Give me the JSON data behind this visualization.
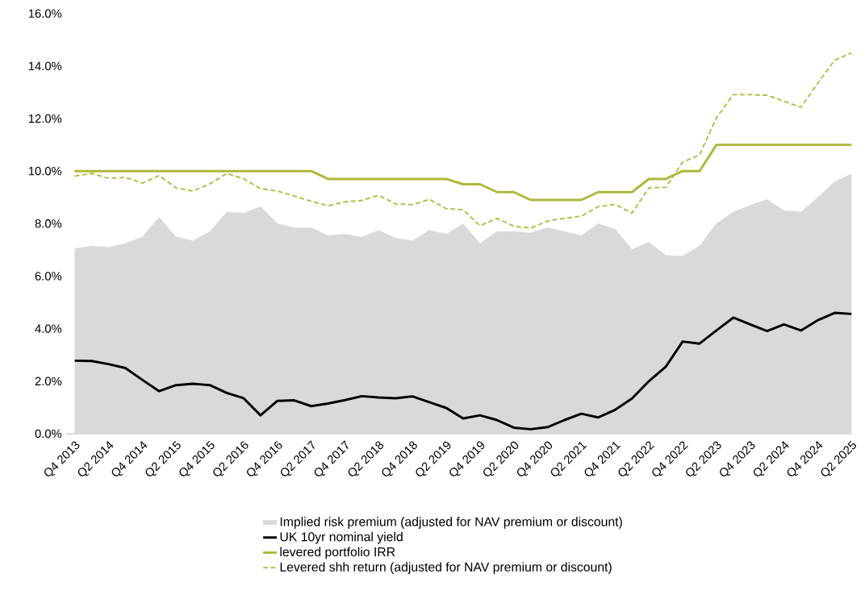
{
  "chart_data": {
    "type": "line",
    "categories": [
      "Q4 2013",
      null,
      "Q2 2014",
      null,
      "Q4 2014",
      null,
      "Q2 2015",
      null,
      "Q4 2015",
      null,
      "Q2 2016",
      null,
      "Q4 2016",
      null,
      "Q2 2017",
      null,
      "Q4 2017",
      null,
      "Q2 2018",
      null,
      "Q4 2018",
      null,
      "Q2 2019",
      null,
      "Q4 2019",
      null,
      "Q2 2020",
      null,
      "Q4 2020",
      null,
      "Q2 2021",
      null,
      "Q4 2021",
      null,
      "Q2 2022",
      null,
      "Q4 2022",
      null,
      "Q2 2023",
      null,
      "Q4 2023",
      null,
      "Q2 2024",
      null,
      "Q4 2024",
      null,
      "Q2 2025"
    ],
    "ylim": [
      0,
      16
    ],
    "yticks": [
      {
        "value": 0,
        "label": "0.0%"
      },
      {
        "value": 2,
        "label": "2.0%"
      },
      {
        "value": 4,
        "label": "4.0%"
      },
      {
        "value": 6,
        "label": "6.0%"
      },
      {
        "value": 8,
        "label": "8.0%"
      },
      {
        "value": 10,
        "label": "10.0%"
      },
      {
        "value": 12,
        "label": "12.0%"
      },
      {
        "value": 14,
        "label": "14.0%"
      },
      {
        "value": 16,
        "label": "16.0%"
      }
    ],
    "legend": "bottom",
    "series": [
      {
        "name": "Implied risk premium (adjusted for NAV premium or discount)",
        "type": "area",
        "color": "#d9d9d9",
        "values": [
          7.05,
          7.15,
          7.1,
          7.25,
          7.5,
          8.25,
          7.5,
          7.35,
          7.7,
          8.45,
          8.4,
          8.65,
          8.0,
          7.85,
          7.85,
          7.55,
          7.6,
          7.5,
          7.75,
          7.45,
          7.35,
          7.75,
          7.6,
          8.0,
          7.25,
          7.7,
          7.7,
          7.65,
          7.85,
          7.7,
          7.55,
          8.0,
          7.8,
          7.02,
          7.3,
          6.8,
          6.76,
          7.16,
          8.0,
          8.45,
          8.7,
          8.92,
          8.5,
          8.45,
          9.0,
          9.6,
          9.9
        ]
      },
      {
        "name": "UK 10yr nominal yield",
        "line_style": "solid",
        "color": "#000000",
        "values": [
          2.78,
          2.77,
          2.65,
          2.5,
          2.05,
          1.62,
          1.85,
          1.9,
          1.85,
          1.55,
          1.35,
          0.7,
          1.25,
          1.27,
          1.05,
          1.15,
          1.28,
          1.43,
          1.38,
          1.35,
          1.42,
          1.2,
          0.98,
          0.58,
          0.7,
          0.52,
          0.23,
          0.17,
          0.25,
          0.52,
          0.76,
          0.62,
          0.91,
          1.34,
          2.0,
          2.55,
          3.51,
          3.43,
          3.93,
          4.42,
          4.16,
          3.91,
          4.16,
          3.93,
          4.32,
          4.6,
          4.56
        ]
      },
      {
        "name": "levered portfolio IRR",
        "line_style": "solid",
        "color": "#afb83b",
        "values": [
          10.0,
          10.0,
          10.0,
          10.0,
          10.0,
          10.0,
          10.0,
          10.0,
          10.0,
          10.0,
          10.0,
          10.0,
          10.0,
          10.0,
          10.0,
          9.7,
          9.7,
          9.7,
          9.7,
          9.7,
          9.7,
          9.7,
          9.7,
          9.5,
          9.5,
          9.2,
          9.2,
          8.9,
          8.9,
          8.9,
          8.9,
          9.2,
          9.2,
          9.2,
          9.7,
          9.7,
          10.0,
          10.0,
          11.0,
          11.0,
          11.0,
          11.0,
          11.0,
          11.0,
          11.0,
          11.0,
          11.0
        ]
      },
      {
        "name": "Levered shh return (adjusted for NAV premium or discount)",
        "line_style": "dashed",
        "color": "#afb83b",
        "values": [
          9.81,
          9.91,
          9.73,
          9.76,
          9.54,
          9.83,
          9.36,
          9.24,
          9.51,
          9.91,
          9.71,
          9.33,
          9.24,
          9.05,
          8.85,
          8.68,
          8.83,
          8.88,
          9.08,
          8.75,
          8.72,
          8.92,
          8.57,
          8.53,
          7.92,
          8.2,
          7.9,
          7.83,
          8.1,
          8.2,
          8.28,
          8.65,
          8.73,
          8.4,
          9.36,
          9.38,
          10.34,
          10.62,
          12.03,
          12.91,
          12.91,
          12.89,
          12.66,
          12.43,
          13.34,
          14.22,
          14.5
        ]
      }
    ]
  }
}
